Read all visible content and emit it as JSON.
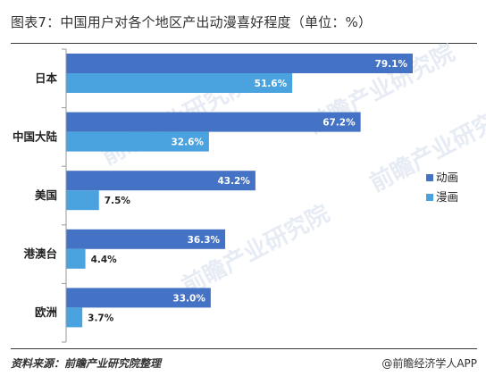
{
  "title": "图表7：中国用户对各个地区产出动漫喜好程度（单位：%）",
  "source": "资料来源：前瞻产业研究院整理",
  "credit": "@前瞻经济学人APP",
  "watermark": "前瞻产业研究院",
  "colors": {
    "animation": "#4472c4",
    "manga": "#4aa3df",
    "axis": "#9a9a9a",
    "watermark": "#e7ecf4"
  },
  "chart_data": {
    "type": "bar",
    "orientation": "horizontal",
    "categories": [
      "日本",
      "中国大陆",
      "美国",
      "港澳台",
      "欧洲"
    ],
    "series": [
      {
        "name": "动画",
        "values": [
          79.1,
          67.2,
          43.2,
          36.3,
          33.0
        ],
        "labels": [
          "79.1%",
          "67.2%",
          "43.2%",
          "36.3%",
          "33.0%"
        ]
      },
      {
        "name": "漫画",
        "values": [
          51.6,
          32.6,
          7.5,
          4.4,
          3.7
        ],
        "labels": [
          "51.6%",
          "32.6%",
          "7.5%",
          "4.4%",
          "3.7%"
        ]
      }
    ],
    "xlim": [
      0,
      85
    ],
    "legend_position": "right",
    "grid": false
  }
}
